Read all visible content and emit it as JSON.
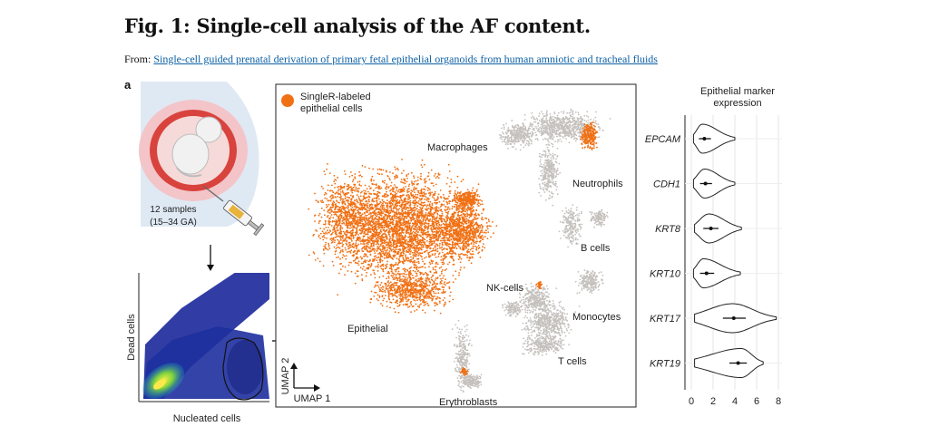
{
  "header": {
    "title": "Fig. 1: Single-cell analysis of the AF content.",
    "source_prefix": "From: ",
    "source_link": "Single-cell guided prenatal derivation of primary fetal epithelial organoids from human amniotic and tracheal fluids"
  },
  "panel": {
    "letter": "a",
    "samples_line1": "12 samples",
    "samples_line2": "(15–34 GA)",
    "facs": {
      "ylabel": "Dead cells",
      "xlabel": "Nucleated cells"
    },
    "umap": {
      "legend_line1": "SingleR-labeled",
      "legend_line2": "epithelial cells",
      "legend_color": "#f07014",
      "cell_color": "#c4c1bd",
      "axis1": "UMAP 1",
      "axis2": "UMAP 2",
      "clusters": [
        "Macrophages",
        "Neutrophils",
        "B cells",
        "NK-cells",
        "Monocytes",
        "T cells",
        "Epithelial",
        "Erythroblasts"
      ]
    }
  },
  "chart_data": {
    "type": "violin",
    "title": "Epithelial marker expression",
    "title_line1": "Epithelial marker",
    "title_line2": "expression",
    "xlim": [
      0,
      8
    ],
    "x_ticks": [
      0,
      2,
      4,
      6,
      8
    ],
    "genes": [
      {
        "name": "EPCAM",
        "min": 0.2,
        "max": 4.0,
        "mode": 1.0,
        "median": 1.2,
        "q1": 0.7,
        "q3": 1.8
      },
      {
        "name": "CDH1",
        "min": 0.2,
        "max": 4.0,
        "mode": 1.2,
        "median": 1.3,
        "q1": 0.8,
        "q3": 1.9
      },
      {
        "name": "KRT8",
        "min": 0.3,
        "max": 4.6,
        "mode": 1.6,
        "median": 1.8,
        "q1": 1.1,
        "q3": 2.5
      },
      {
        "name": "KRT10",
        "min": 0.2,
        "max": 4.5,
        "mode": 1.1,
        "median": 1.4,
        "q1": 0.8,
        "q3": 2.1
      },
      {
        "name": "KRT17",
        "min": 0.3,
        "max": 7.8,
        "mode": 3.8,
        "median": 3.9,
        "q1": 2.9,
        "q3": 5.0
      },
      {
        "name": "KRT19",
        "min": 0.3,
        "max": 6.6,
        "mode": 4.6,
        "median": 4.3,
        "q1": 3.5,
        "q3": 5.1
      }
    ]
  }
}
